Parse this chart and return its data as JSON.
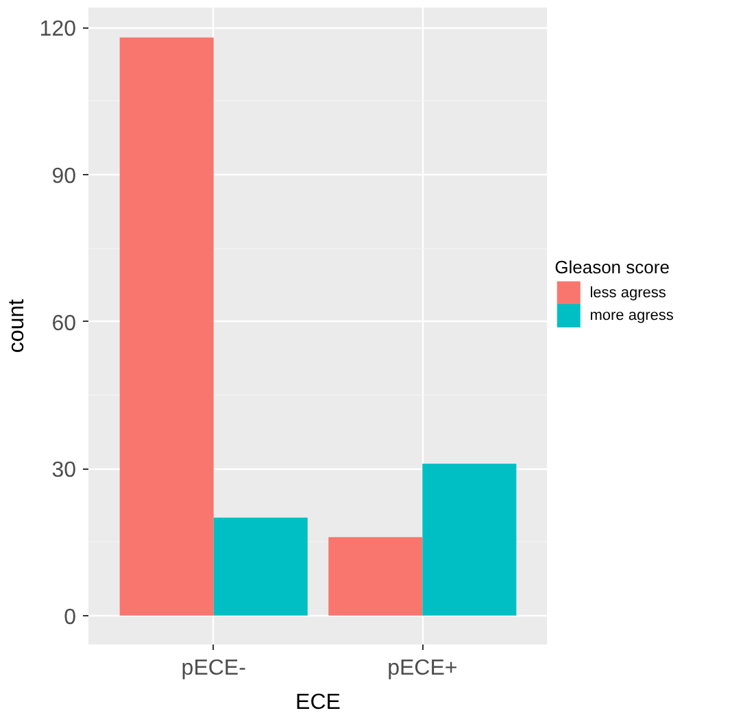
{
  "chart_data": {
    "type": "bar",
    "xlabel": "ECE",
    "ylabel": "count",
    "legend_title": "Gleason score",
    "categories": [
      "pECE-",
      "pECE+"
    ],
    "series": [
      {
        "name": "less agress",
        "color": "#f8766d",
        "values": [
          118,
          16
        ]
      },
      {
        "name": "more agress",
        "color": "#00bfc4",
        "values": [
          20,
          31
        ]
      }
    ],
    "ylim": [
      -5.9,
      124.1
    ],
    "yticks": [
      0,
      30,
      60,
      90,
      120
    ],
    "grid": true,
    "legend": "right"
  }
}
